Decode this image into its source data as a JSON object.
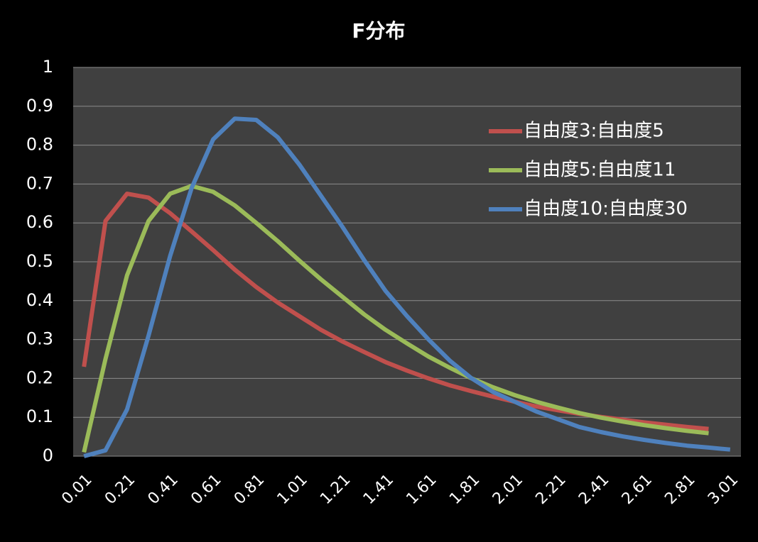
{
  "chart_data": {
    "type": "line",
    "title": "F分布",
    "categories": [
      "0.01",
      null,
      "0.21",
      null,
      "0.41",
      null,
      "0.61",
      null,
      "0.81",
      null,
      "1.01",
      null,
      "1.21",
      null,
      "1.41",
      null,
      "1.61",
      null,
      "1.81",
      null,
      "2.01",
      null,
      "2.21",
      null,
      "2.41",
      null,
      "2.61",
      null,
      "2.81",
      null,
      "3.01"
    ],
    "series": [
      {
        "name": "自由度3:自由度5",
        "color": "#c0504d",
        "values": [
          0.23,
          0.605,
          0.675,
          0.665,
          0.625,
          0.578,
          0.53,
          0.48,
          0.435,
          0.395,
          0.36,
          0.325,
          0.295,
          0.268,
          0.242,
          0.22,
          0.2,
          0.182,
          0.167,
          0.153,
          0.14,
          0.128,
          0.118,
          0.109,
          0.101,
          0.094,
          0.087,
          0.081,
          0.075,
          0.07,
          null
        ]
      },
      {
        "name": "自由度5:自由度11",
        "color": "#9bbb59",
        "values": [
          0.01,
          0.25,
          0.465,
          0.605,
          0.675,
          0.695,
          0.68,
          0.645,
          0.6,
          0.553,
          0.503,
          0.455,
          0.41,
          0.365,
          0.325,
          0.29,
          0.256,
          0.227,
          0.2,
          0.177,
          0.157,
          0.14,
          0.125,
          0.111,
          0.099,
          0.089,
          0.08,
          0.072,
          0.065,
          0.059,
          null
        ]
      },
      {
        "name": "自由度10:自由度30",
        "color": "#4f81bd",
        "values": [
          0.0,
          0.015,
          0.12,
          0.31,
          0.515,
          0.69,
          0.815,
          0.868,
          0.865,
          0.82,
          0.75,
          0.67,
          0.59,
          0.505,
          0.425,
          0.36,
          0.3,
          0.245,
          0.2,
          0.165,
          0.14,
          0.115,
          0.095,
          0.075,
          0.062,
          0.051,
          0.042,
          0.034,
          0.027,
          0.022,
          0.017
        ]
      }
    ],
    "ylim": [
      0,
      1
    ],
    "yticks": [
      0,
      0.1,
      0.2,
      0.3,
      0.4,
      0.5,
      0.6,
      0.7,
      0.8,
      0.9,
      1
    ],
    "grid": true,
    "legend": "upper right"
  }
}
